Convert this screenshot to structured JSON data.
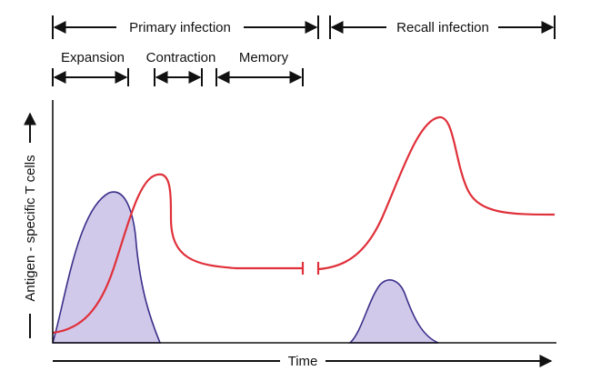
{
  "phases": {
    "primary": "Primary infection",
    "recall": "Recall infection",
    "expansion": "Expansion",
    "contraction": "Contraction",
    "memory": "Memory"
  },
  "axes": {
    "x_label": "Time",
    "y_label": "Antigen - specific T cells"
  },
  "colors": {
    "t_cell_curve": "#e0303a",
    "antigen_fill": "#c9c0e6",
    "antigen_stroke": "#3b2f8a",
    "arrow": "#111111",
    "axis": "#111111"
  }
}
